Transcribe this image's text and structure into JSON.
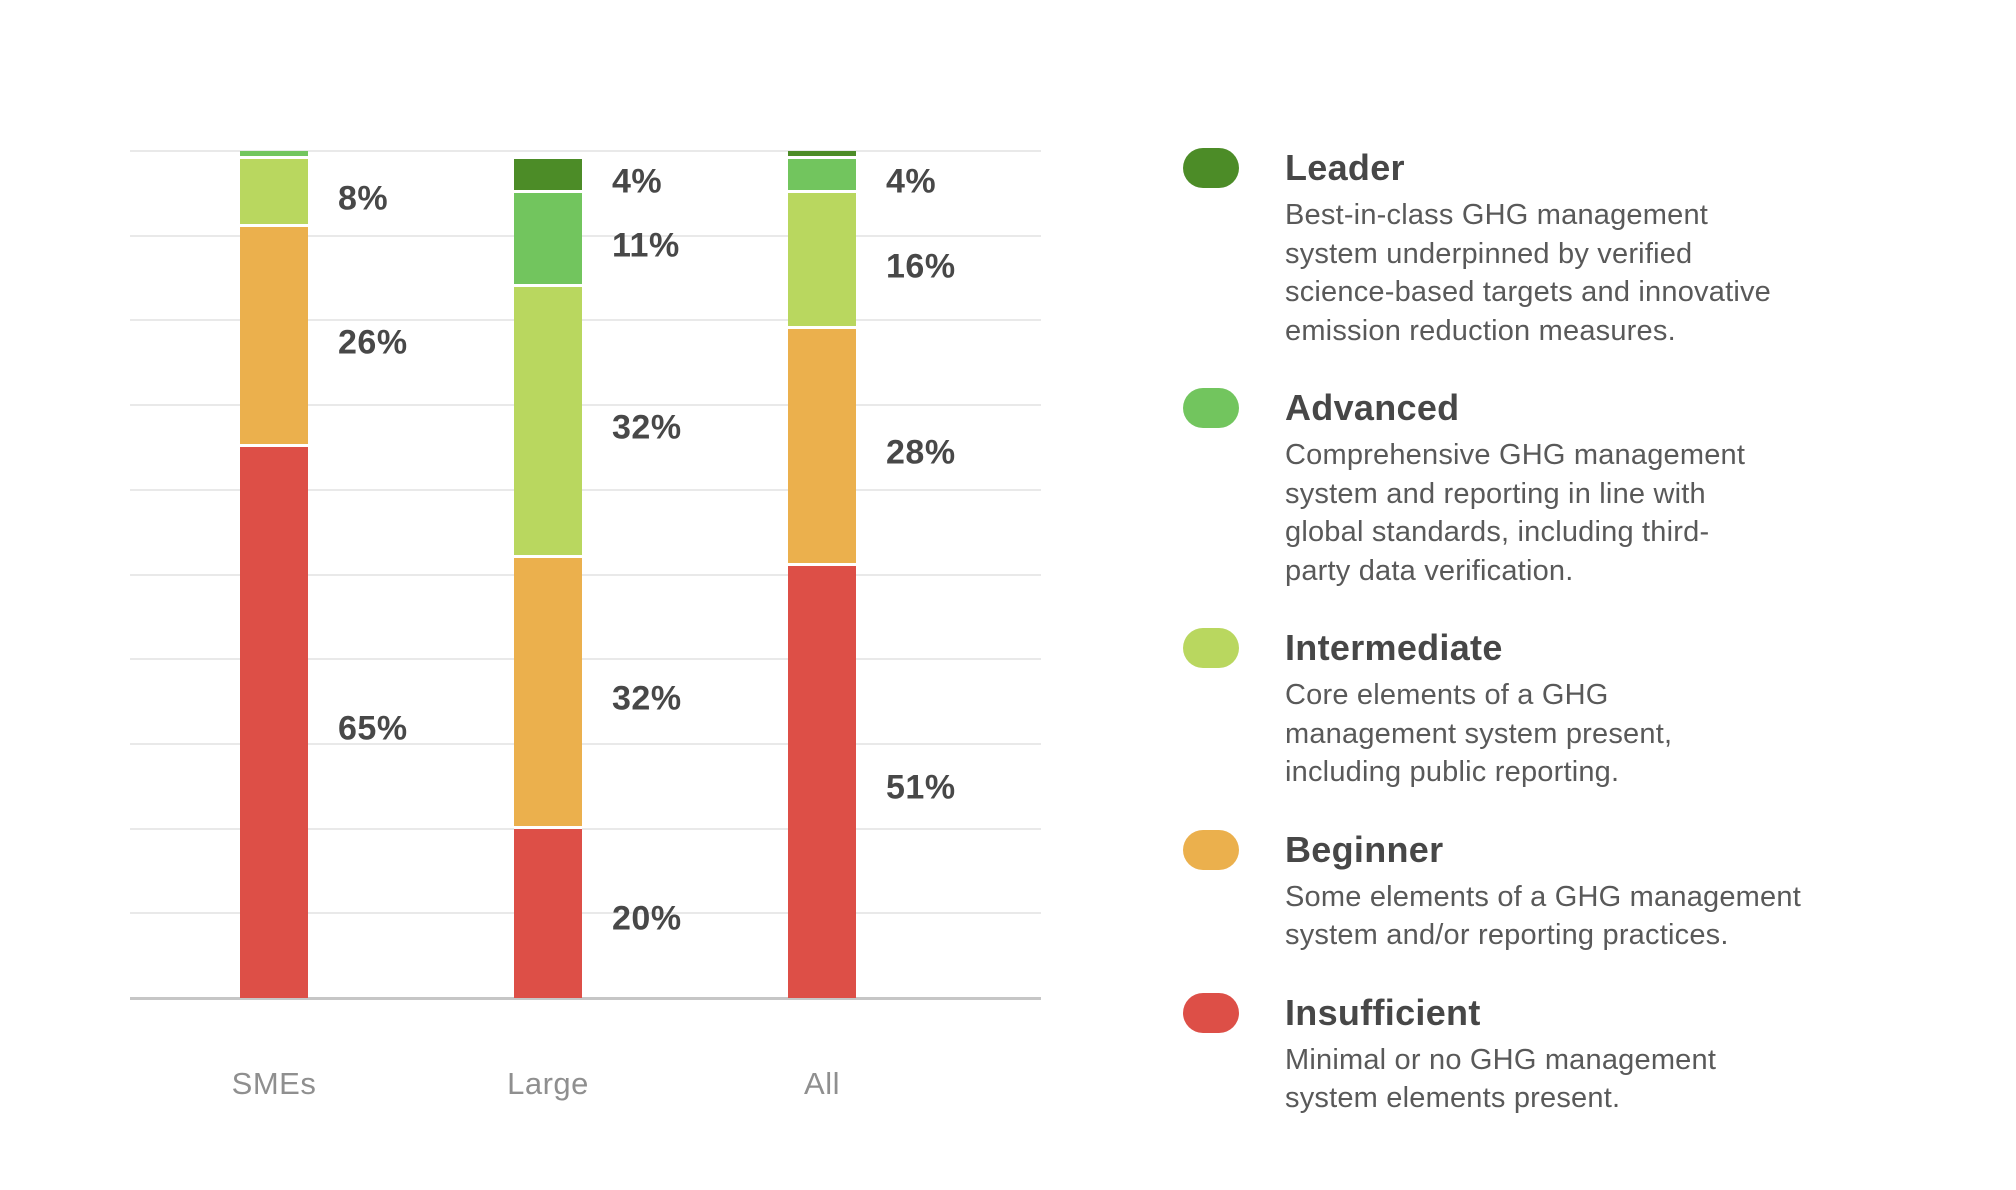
{
  "chart_data": {
    "type": "bar",
    "subtype": "stacked-percentage-columns",
    "title": "",
    "categories": [
      "SMEs",
      "Large",
      "All"
    ],
    "unit": "%",
    "ylim": [
      0,
      100
    ],
    "gridline_step_pct": 10,
    "grid": true,
    "legend_position": "right",
    "levels": {
      "Leader": "#4c8c27",
      "Advanced": "#72c55e",
      "Intermediate": "#b9d75f",
      "Beginner": "#ebb04d",
      "Insufficient": "#dd4f47"
    },
    "series": [
      {
        "category": "SMEs",
        "segments": [
          {
            "level": "Advanced",
            "value": 1,
            "label": ""
          },
          {
            "level": "Intermediate",
            "value": 8,
            "label": "8%"
          },
          {
            "level": "Beginner",
            "value": 26,
            "label": "26%"
          },
          {
            "level": "Insufficient",
            "value": 65,
            "label": "65%"
          }
        ]
      },
      {
        "category": "Large",
        "segments": [
          {
            "level": "Leader",
            "value": 4,
            "label": "4%"
          },
          {
            "level": "Advanced",
            "value": 11,
            "label": "11%"
          },
          {
            "level": "Intermediate",
            "value": 32,
            "label": "32%"
          },
          {
            "level": "Beginner",
            "value": 32,
            "label": "32%"
          },
          {
            "level": "Insufficient",
            "value": 20,
            "label": "20%"
          }
        ]
      },
      {
        "category": "All",
        "segments": [
          {
            "level": "Leader",
            "value": 1,
            "label": ""
          },
          {
            "level": "Advanced",
            "value": 4,
            "label": "4%"
          },
          {
            "level": "Intermediate",
            "value": 16,
            "label": "16%"
          },
          {
            "level": "Beginner",
            "value": 28,
            "label": "28%"
          },
          {
            "level": "Insufficient",
            "value": 51,
            "label": "51%"
          }
        ]
      }
    ]
  },
  "legend": {
    "items": [
      {
        "name": "Leader",
        "color": "#4c8c27",
        "description": "Best-in-class GHG management\nsystem underpinned by verified\nscience-based targets and innovative\nemission reduction measures."
      },
      {
        "name": "Advanced",
        "color": "#72c55e",
        "description": "Comprehensive GHG management\nsystem and reporting in line with\nglobal standards, including third-\nparty data verification."
      },
      {
        "name": "Intermediate",
        "color": "#b9d75f",
        "description": "Core elements of a GHG\nmanagement system present,\nincluding public reporting."
      },
      {
        "name": "Beginner",
        "color": "#ebb04d",
        "description": "Some elements of a GHG management\nsystem and/or reporting practices."
      },
      {
        "name": "Insufficient",
        "color": "#dd4f47",
        "description": "Minimal or no GHG management\nsystem elements present."
      }
    ]
  }
}
